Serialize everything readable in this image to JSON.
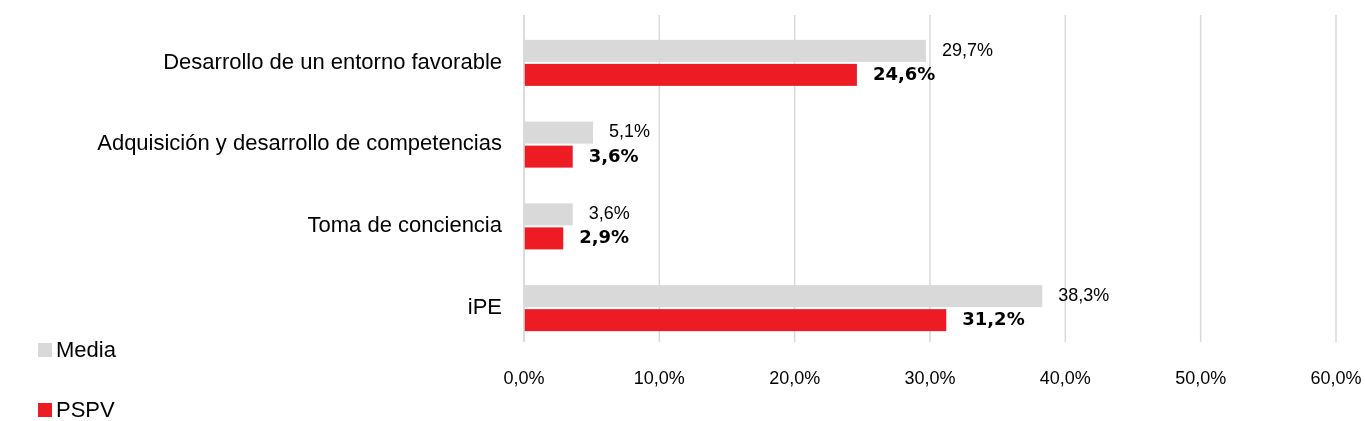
{
  "chart_data": {
    "type": "bar",
    "orientation": "horizontal",
    "categories": [
      "Desarrollo de un entorno favorable",
      "Adquisición y desarrollo de competencias",
      "Toma de conciencia",
      "iPE"
    ],
    "series": [
      {
        "name": "Media",
        "color": "#d9d9d9",
        "values": [
          29.7,
          5.1,
          3.6,
          38.3
        ],
        "value_labels": [
          "29,7%",
          "5,1%",
          "3,6%",
          "38,3%"
        ]
      },
      {
        "name": "PSPV",
        "color": "#ed1c24",
        "values": [
          24.6,
          3.6,
          2.9,
          31.2
        ],
        "value_labels": [
          "24,6%",
          "3,6%",
          "2,9%",
          "31,2%"
        ]
      }
    ],
    "xlim": [
      0,
      60
    ],
    "xticks": [
      {
        "value": 0,
        "label": "0,0%"
      },
      {
        "value": 10,
        "label": "10,0%"
      },
      {
        "value": 20,
        "label": "20,0%"
      },
      {
        "value": 30,
        "label": "30,0%"
      },
      {
        "value": 40,
        "label": "40,0%"
      },
      {
        "value": 50,
        "label": "50,0%"
      },
      {
        "value": 60,
        "label": "60,0%"
      }
    ],
    "grid": "x",
    "legend": "bottom left"
  }
}
